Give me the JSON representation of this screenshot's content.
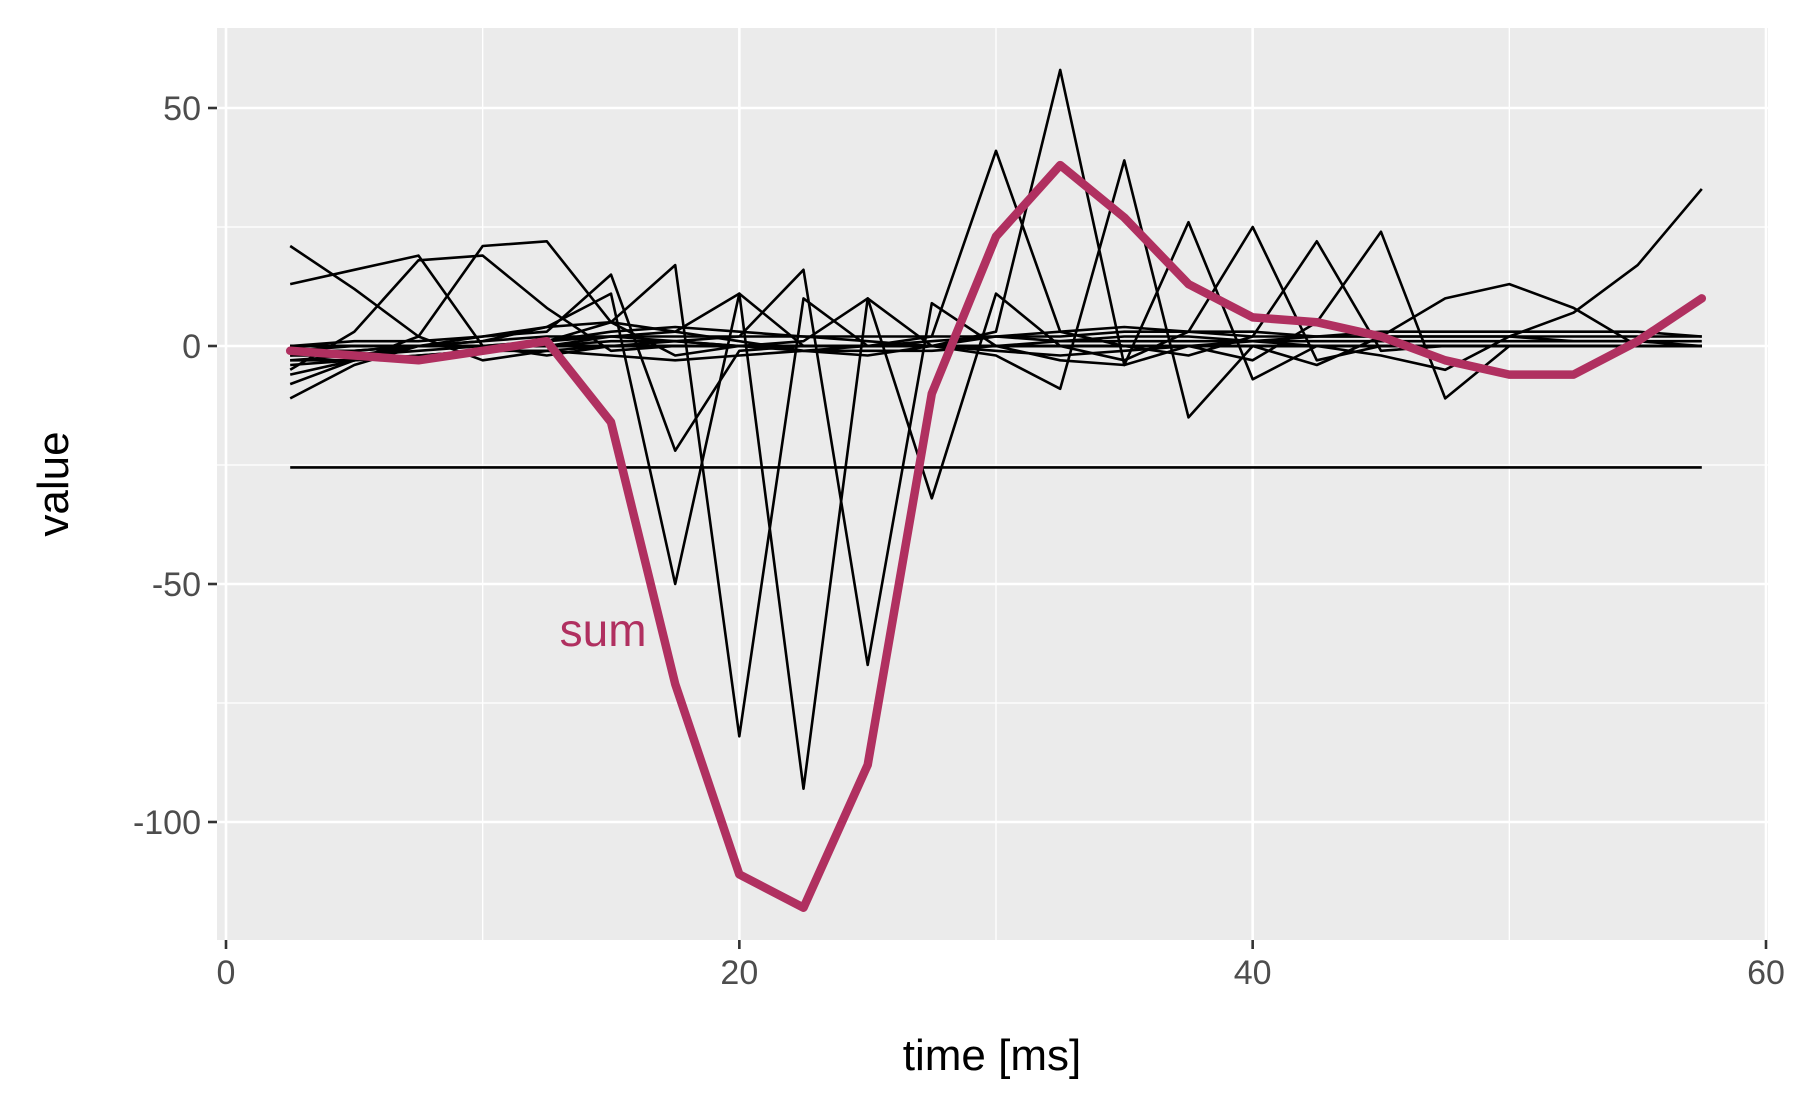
{
  "chart_data": {
    "type": "line",
    "xlabel": "time [ms]",
    "ylabel": "value",
    "xlim": [
      0,
      60
    ],
    "ylim": [
      -125,
      65
    ],
    "x_ticks": [
      0,
      20,
      40,
      60
    ],
    "y_ticks": [
      50,
      0,
      -50,
      -100
    ],
    "x_tick_labels": [
      "0",
      "20",
      "40",
      "60"
    ],
    "y_tick_labels": [
      "50",
      "0",
      "-50",
      "-100"
    ],
    "grid": true,
    "sum_color": "#b03060",
    "annotation": {
      "text": "sum",
      "x": 13,
      "y": -63
    },
    "x": [
      2.5,
      5,
      7.5,
      10,
      12.5,
      15,
      17.5,
      20,
      22.5,
      25,
      27.5,
      30,
      32.5,
      35,
      37.5,
      40,
      42.5,
      45,
      47.5,
      50,
      52.5,
      55,
      57.5
    ],
    "series": [
      {
        "role": "component",
        "values": [
          -25.5,
          -25.5,
          -25.5,
          -25.5,
          -25.5,
          -25.5,
          -25.5,
          -25.5,
          -25.5,
          -25.5,
          -25.5,
          -25.5,
          -25.5,
          -25.5,
          -25.5,
          -25.5,
          -25.5,
          -25.5,
          -25.5,
          -25.5,
          -25.5,
          -25.5,
          -25.5
        ]
      },
      {
        "role": "component",
        "values": [
          21,
          12,
          2,
          -3,
          -1,
          0,
          1,
          0,
          0,
          0,
          0,
          0,
          0,
          0,
          0,
          0,
          0,
          0,
          0,
          0,
          0,
          0,
          0
        ]
      },
      {
        "role": "component",
        "values": [
          13,
          16,
          19,
          0,
          -2,
          0,
          0,
          0,
          0,
          0,
          0,
          0,
          0,
          0,
          0,
          0,
          0,
          0,
          0,
          0,
          0,
          0,
          0
        ]
      },
      {
        "role": "component",
        "values": [
          -5,
          3,
          18,
          19,
          8,
          -1,
          0,
          0,
          0,
          0,
          0,
          0,
          0,
          0,
          0,
          0,
          0,
          0,
          0,
          0,
          0,
          0,
          0
        ]
      },
      {
        "role": "component",
        "values": [
          -8,
          -3,
          2,
          21,
          22,
          5,
          -2,
          0,
          0,
          0,
          0,
          0,
          0,
          0,
          0,
          0,
          0,
          0,
          0,
          0,
          0,
          0,
          0
        ]
      },
      {
        "role": "component",
        "values": [
          -11,
          -4,
          0,
          2,
          3,
          15,
          -22,
          -1,
          0,
          0,
          0,
          0,
          0,
          0,
          0,
          0,
          0,
          0,
          0,
          0,
          0,
          0,
          0
        ]
      },
      {
        "role": "component",
        "values": [
          -6,
          -3,
          0,
          1,
          4,
          11,
          -50,
          11,
          0,
          0,
          0,
          0,
          0,
          0,
          0,
          0,
          0,
          0,
          0,
          0,
          0,
          0,
          0
        ]
      },
      {
        "role": "component",
        "values": [
          -3,
          -2,
          0,
          0,
          1,
          5,
          17,
          -82,
          10,
          0,
          0,
          0,
          0,
          0,
          0,
          0,
          0,
          0,
          0,
          0,
          0,
          0,
          0
        ]
      },
      {
        "role": "component",
        "values": [
          -2,
          -1,
          0,
          0,
          0,
          2,
          3,
          11,
          -93,
          10,
          0,
          0,
          0,
          0,
          0,
          0,
          0,
          0,
          0,
          0,
          0,
          0,
          0
        ]
      },
      {
        "role": "component",
        "values": [
          -1,
          0,
          0,
          0,
          0,
          1,
          1,
          2,
          16,
          -67,
          9,
          0,
          0,
          0,
          0,
          0,
          0,
          0,
          0,
          0,
          0,
          0,
          0
        ]
      },
      {
        "role": "component",
        "values": [
          0,
          0,
          0,
          0,
          0,
          0,
          0,
          0,
          1,
          10,
          -32,
          11,
          0,
          0,
          0,
          0,
          0,
          0,
          0,
          0,
          0,
          0,
          0
        ]
      },
      {
        "role": "component",
        "values": [
          0,
          0,
          0,
          0,
          0,
          0,
          0,
          0,
          0,
          0,
          2,
          41,
          3,
          0,
          0,
          0,
          0,
          0,
          0,
          0,
          0,
          0,
          0
        ]
      },
      {
        "role": "component",
        "values": [
          0,
          0,
          0,
          0,
          0,
          0,
          0,
          0,
          0,
          0,
          0,
          3,
          58,
          -4,
          0,
          0,
          0,
          0,
          0,
          0,
          0,
          0,
          0
        ]
      },
      {
        "role": "component",
        "values": [
          0,
          0,
          0,
          0,
          0,
          0,
          0,
          0,
          0,
          0,
          0,
          -2,
          -9,
          39,
          -15,
          0,
          0,
          0,
          0,
          0,
          0,
          0,
          0
        ]
      },
      {
        "role": "component",
        "values": [
          0,
          0,
          0,
          0,
          0,
          0,
          0,
          0,
          0,
          0,
          0,
          0,
          -3,
          -4,
          26,
          -7,
          0,
          0,
          0,
          0,
          0,
          0,
          0
        ]
      },
      {
        "role": "component",
        "values": [
          0,
          0,
          0,
          0,
          0,
          0,
          0,
          0,
          0,
          0,
          0,
          0,
          0,
          -3,
          3,
          25,
          -3,
          0,
          0,
          0,
          0,
          0,
          0
        ]
      },
      {
        "role": "component",
        "values": [
          0,
          0,
          0,
          0,
          0,
          0,
          0,
          0,
          0,
          0,
          0,
          0,
          0,
          0,
          -2,
          2,
          22,
          -1,
          0,
          0,
          0,
          0,
          0
        ]
      },
      {
        "role": "component",
        "values": [
          0,
          0,
          0,
          0,
          0,
          0,
          0,
          0,
          0,
          0,
          0,
          0,
          0,
          0,
          0,
          -3,
          5,
          24,
          -11,
          0,
          0,
          0,
          0
        ]
      },
      {
        "role": "component",
        "values": [
          0,
          0,
          0,
          0,
          0,
          0,
          0,
          0,
          0,
          0,
          0,
          0,
          0,
          0,
          0,
          0,
          -4,
          2,
          10,
          13,
          8,
          0,
          0
        ]
      },
      {
        "role": "component",
        "values": [
          0,
          0,
          0,
          0,
          0,
          0,
          0,
          0,
          0,
          0,
          0,
          0,
          0,
          0,
          0,
          0,
          0,
          -2,
          -5,
          2,
          7,
          17,
          33
        ]
      },
      {
        "role": "component",
        "values": [
          0,
          1,
          1,
          2,
          4,
          5,
          3,
          1,
          -1,
          -2,
          0,
          2,
          3,
          4,
          3,
          3,
          2,
          3,
          3,
          3,
          3,
          3,
          2
        ]
      },
      {
        "role": "component",
        "values": [
          -1,
          -1,
          0,
          1,
          2,
          2,
          1,
          0,
          -1,
          -1,
          -1,
          0,
          1,
          2,
          2,
          1,
          0,
          0,
          0,
          0,
          0,
          0,
          0
        ]
      },
      {
        "role": "component",
        "values": [
          -2,
          -2,
          -1,
          0,
          1,
          2,
          2,
          2,
          2,
          2,
          2,
          2,
          1,
          1,
          1,
          1,
          1,
          1,
          1,
          1,
          1,
          1,
          1
        ]
      },
      {
        "role": "component",
        "values": [
          -3,
          -3,
          -2,
          -1,
          -1,
          -2,
          -3,
          -2,
          -1,
          0,
          1,
          2,
          2,
          3,
          3,
          2,
          2,
          2,
          2,
          2,
          2,
          2,
          2
        ]
      },
      {
        "role": "component",
        "values": [
          -4,
          -3,
          -2,
          -1,
          1,
          3,
          4,
          3,
          2,
          1,
          0,
          -1,
          -2,
          -1,
          0,
          1,
          2,
          2,
          2,
          2,
          1,
          1,
          0
        ]
      },
      {
        "role": "sum",
        "values": [
          -1,
          -2,
          -3,
          -1,
          1,
          -16,
          -71,
          -111,
          -118,
          -88,
          -10,
          23,
          38,
          27,
          13,
          6,
          5,
          2,
          -3,
          -6,
          -6,
          1,
          10
        ]
      }
    ]
  }
}
